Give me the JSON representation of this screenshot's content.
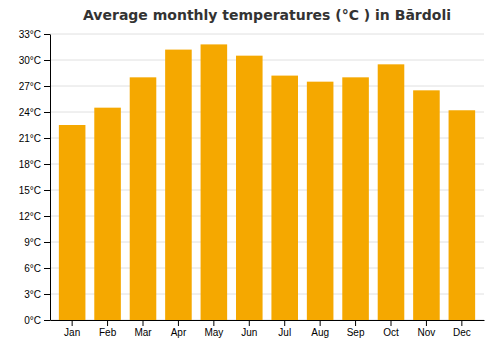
{
  "chart_data": {
    "type": "bar",
    "title": "Average monthly temperatures (°C ) in Bārdoli",
    "categories": [
      "Jan",
      "Feb",
      "Mar",
      "Apr",
      "May",
      "Jun",
      "Jul",
      "Aug",
      "Sep",
      "Oct",
      "Nov",
      "Dec"
    ],
    "values": [
      22.5,
      24.5,
      28.0,
      31.2,
      31.8,
      30.5,
      28.2,
      27.5,
      28.0,
      29.5,
      26.5,
      24.2
    ],
    "color": "#F5A800",
    "ylim": [
      0,
      33
    ],
    "yticks": [
      {
        "value": 0,
        "label": "0°C"
      },
      {
        "value": 3,
        "label": "3°C"
      },
      {
        "value": 6,
        "label": "6°C"
      },
      {
        "value": 9,
        "label": "9°C"
      },
      {
        "value": 12,
        "label": "12°C"
      },
      {
        "value": 15,
        "label": "15°C"
      },
      {
        "value": 18,
        "label": "18°C"
      },
      {
        "value": 21,
        "label": "21°C"
      },
      {
        "value": 24,
        "label": "24°C"
      },
      {
        "value": 27,
        "label": "27°C"
      },
      {
        "value": 30,
        "label": "30°C"
      },
      {
        "value": 33,
        "label": "33°C"
      }
    ],
    "grid": true
  }
}
